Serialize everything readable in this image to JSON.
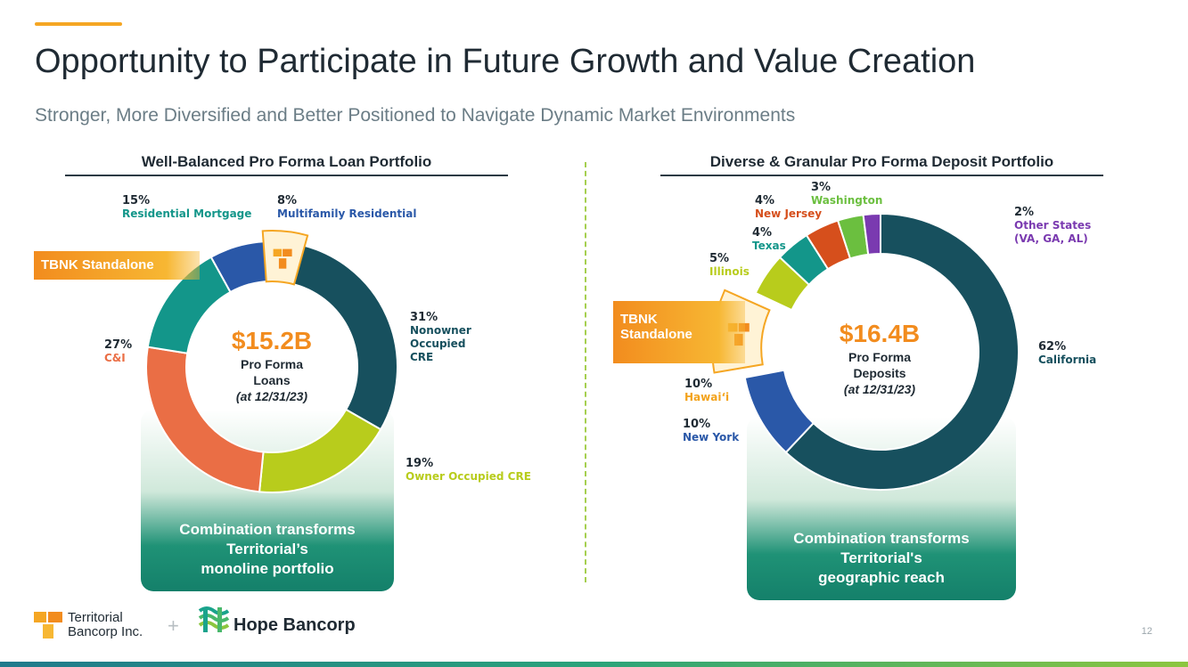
{
  "header": {
    "title": "Opportunity to Participate in Future Growth and Value Creation",
    "subtitle": "Stronger, More Diversified and Better Positioned to Navigate Dynamic Market Environments"
  },
  "loan": {
    "heading": "Well-Balanced Pro Forma Loan Portfolio",
    "center": {
      "amount": "$15.2B",
      "line1": "Pro Forma",
      "line2": "Loans",
      "date": "(at 12/31/23)"
    },
    "tag": "TBNK Standalone",
    "panel": [
      "Combination transforms",
      "Territorial’s",
      "monoline portfolio"
    ]
  },
  "deposit": {
    "heading": "Diverse & Granular Pro Forma Deposit Portfolio",
    "center": {
      "amount": "$16.4B",
      "line1": "Pro Forma",
      "line2": "Deposits",
      "date": "(at 12/31/23)"
    },
    "tag": [
      "TBNK",
      "Standalone"
    ],
    "panel": [
      "Combination transforms",
      "Territorial's",
      "geographic reach"
    ]
  },
  "chart_data": [
    {
      "type": "pie",
      "title": "Well-Balanced Pro Forma Loan Portfolio",
      "categories": [
        "Nonowner Occupied CRE",
        "Owner Occupied CRE",
        "",
        "C&I",
        "Residential Mortgage",
        "Multifamily Residential"
      ],
      "labels": [
        "31%",
        "19%",
        "",
        "27%",
        "15%",
        "8%"
      ],
      "values": [
        31,
        19,
        0,
        27,
        15,
        8
      ],
      "colors": [
        "#17505e",
        "#b8cc1c",
        "",
        "#ea6e45",
        "#13968a",
        "#2a58a8"
      ]
    },
    {
      "type": "pie",
      "title": "Diverse & Granular Pro Forma Deposit Portfolio",
      "categories": [
        "California",
        "New York",
        "Hawai‘i",
        "Illinois",
        "Texas",
        "New Jersey",
        "Washington",
        "Other States (VA, GA, AL)"
      ],
      "labels": [
        "62%",
        "10%",
        "10%",
        "5%",
        "4%",
        "4%",
        "3%",
        "2%"
      ],
      "values": [
        62,
        10,
        10,
        5,
        4,
        4,
        3,
        2
      ],
      "colors": [
        "#17505e",
        "#2a58a8",
        "#f3a31c",
        "#b8cc1c",
        "#13968a",
        "#d64f1c",
        "#6bbf3f",
        "#7a3ab0"
      ]
    }
  ],
  "footer": {
    "logo_left": [
      "Territorial",
      "Bancorp Inc."
    ],
    "plus": "+",
    "logo_right": "Hope Bancorp",
    "page": "12"
  }
}
